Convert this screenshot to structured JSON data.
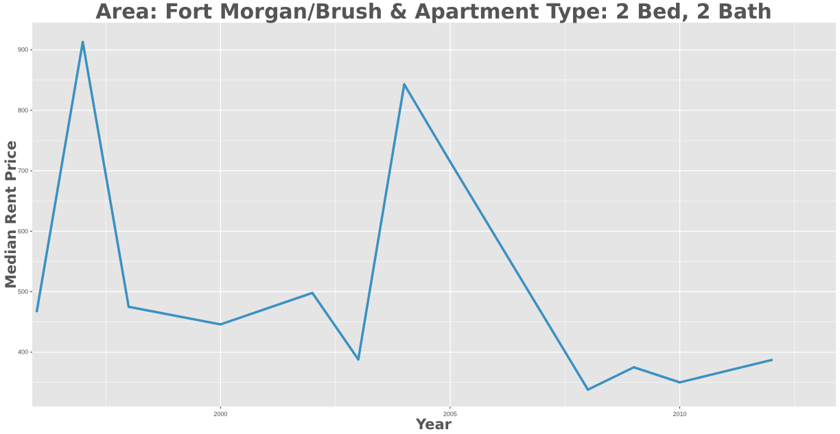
{
  "chart_data": {
    "type": "line",
    "title": "Area: Fort Morgan/Brush & Apartment Type: 2 Bed, 2 Bath",
    "xlabel": "Year",
    "ylabel": "Median Rent Price",
    "xlim": [
      1995.9,
      2013.4
    ],
    "ylim": [
      310,
      945
    ],
    "x_ticks": [
      2000,
      2005,
      2010
    ],
    "y_ticks": [
      400,
      500,
      600,
      700,
      800,
      900
    ],
    "grid": true,
    "line_color": "#3a91c2",
    "panel_color": "#e5e5e5",
    "gridline_color": "#ffffff",
    "x": [
      1996,
      1997,
      1998,
      2000,
      2002,
      2003,
      2004,
      2005,
      2008,
      2009,
      2010,
      2012
    ],
    "values": [
      468,
      913,
      475,
      446,
      498,
      388,
      843,
      715,
      338,
      375,
      350,
      387
    ]
  }
}
